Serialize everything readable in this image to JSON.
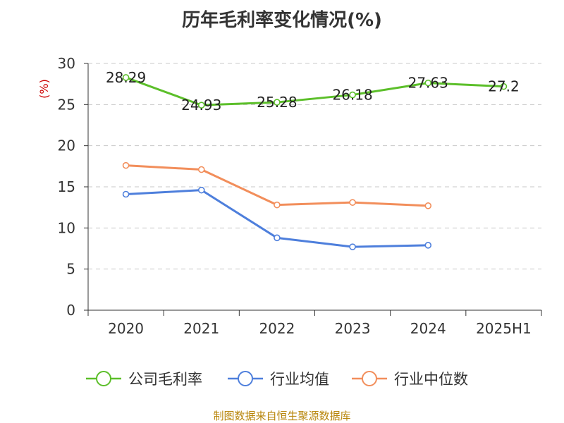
{
  "chart_data": {
    "type": "line",
    "title": "历年毛利率变化情况(%)",
    "ylabel": "(%)",
    "xlabel": "",
    "categories": [
      "2020",
      "2021",
      "2022",
      "2023",
      "2024",
      "2025H1"
    ],
    "ylim": [
      0,
      30
    ],
    "yticks": [
      0,
      5,
      10,
      15,
      20,
      25,
      30
    ],
    "grid": true,
    "legend_position": "bottom",
    "series": [
      {
        "name": "公司毛利率",
        "color": "#5cbf2a",
        "values": [
          28.29,
          24.93,
          25.28,
          26.18,
          27.63,
          27.2
        ],
        "data_labels": [
          "28.29",
          "24.93",
          "25.28",
          "26.18",
          "27.63",
          "27.2"
        ]
      },
      {
        "name": "行业均值",
        "color": "#4e7fdc",
        "values": [
          14.1,
          14.6,
          8.8,
          7.7,
          7.9,
          null
        ]
      },
      {
        "name": "行业中位数",
        "color": "#f28e5b",
        "values": [
          17.6,
          17.1,
          12.8,
          13.1,
          12.7,
          null
        ]
      }
    ],
    "unit_color": "#cc0000"
  },
  "source_note": "制图数据来自恒生聚源数据库"
}
